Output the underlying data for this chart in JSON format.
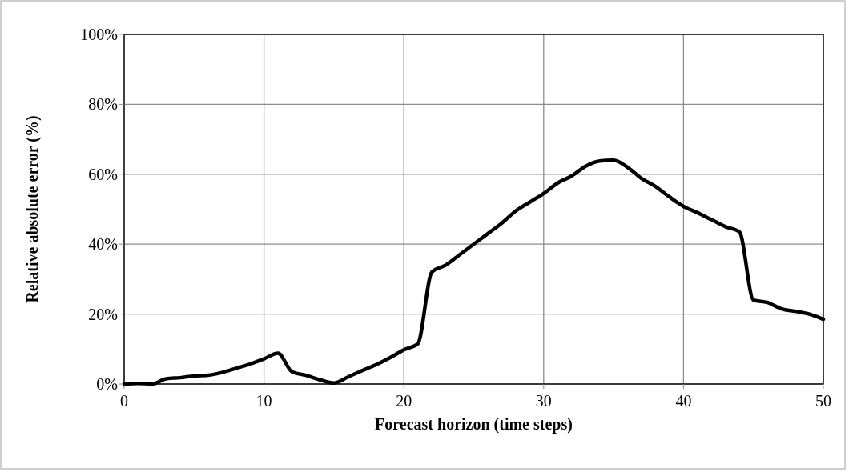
{
  "chart_data": {
    "type": "line",
    "xlabel": "Forecast horizon (time steps)",
    "ylabel": "Relative absolute error (%)",
    "x": [
      0,
      1,
      2,
      3,
      4,
      5,
      6,
      7,
      8,
      9,
      10,
      11,
      12,
      13,
      14,
      15,
      16,
      17,
      18,
      19,
      20,
      21,
      22,
      23,
      24,
      25,
      26,
      27,
      28,
      29,
      30,
      31,
      32,
      33,
      34,
      35,
      36,
      37,
      38,
      39,
      40,
      41,
      42,
      43,
      44,
      45,
      46,
      47,
      48,
      49,
      50
    ],
    "series": [
      {
        "color": "#000000",
        "values": [
          0,
          0.2,
          0,
          1.5,
          1.8,
          2.3,
          2.5,
          3.3,
          4.5,
          5.7,
          7.2,
          8.8,
          3.5,
          2.5,
          1.2,
          0.3,
          2,
          3.8,
          5.5,
          7.5,
          9.8,
          11.5,
          32,
          34,
          37,
          40,
          43,
          46,
          49.5,
          52,
          54.5,
          57.5,
          59.5,
          62.3,
          63.8,
          64,
          62,
          58.8,
          56.5,
          53.5,
          50.8,
          49,
          47,
          45,
          43.5,
          24,
          23.3,
          21.5,
          20.8,
          20,
          18.5
        ]
      }
    ],
    "xlim": [
      0,
      50
    ],
    "xticks": [
      0,
      10,
      20,
      30,
      40,
      50
    ],
    "ylim": [
      0,
      100
    ],
    "yticks": [
      {
        "value": 0,
        "label": "0%"
      },
      {
        "value": 20,
        "label": "20%"
      },
      {
        "value": 40,
        "label": "40%"
      },
      {
        "value": 60,
        "label": "60%"
      },
      {
        "value": 80,
        "label": "80%"
      },
      {
        "value": 100,
        "label": "100%"
      }
    ],
    "grid": true,
    "marker": "none",
    "line_style": "solid"
  }
}
